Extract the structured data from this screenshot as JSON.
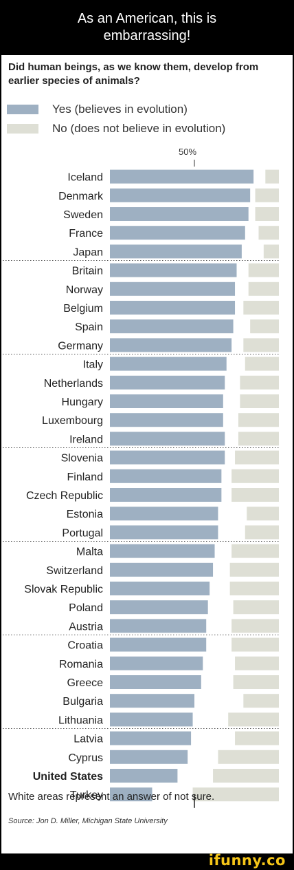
{
  "caption": "As an American, this is embarrassing!",
  "question": "Did human beings, as we know them, develop from earlier species of animals?",
  "legend": [
    {
      "label": "Yes (believes in evolution)",
      "color": "#9eb0c2"
    },
    {
      "label": "No (does not believe in evolution)",
      "color": "#dedfd5"
    }
  ],
  "chart_data": {
    "type": "bar",
    "orientation": "horizontal",
    "stacked": true,
    "reference_line_label": "50%",
    "reference_value": 50,
    "xlim": [
      0,
      100
    ],
    "categories": [
      "Iceland",
      "Denmark",
      "Sweden",
      "France",
      "Japan",
      "Britain",
      "Norway",
      "Belgium",
      "Spain",
      "Germany",
      "Italy",
      "Netherlands",
      "Hungary",
      "Luxembourg",
      "Ireland",
      "Slovenia",
      "Finland",
      "Czech Republic",
      "Estonia",
      "Portugal",
      "Malta",
      "Switzerland",
      "Slovak Republic",
      "Poland",
      "Austria",
      "Croatia",
      "Romania",
      "Greece",
      "Bulgaria",
      "Lithuania",
      "Latvia",
      "Cyprus",
      "United States",
      "Turkey"
    ],
    "highlight": "United States",
    "group_sizes": [
      5,
      5,
      5,
      5,
      5,
      5,
      4
    ],
    "series": [
      {
        "name": "Yes (believes in evolution)",
        "color": "#9eb0c2",
        "values": [
          85,
          83,
          82,
          80,
          78,
          75,
          74,
          74,
          73,
          72,
          69,
          68,
          67,
          67,
          68,
          68,
          66,
          66,
          64,
          64,
          62,
          61,
          59,
          58,
          57,
          57,
          55,
          54,
          50,
          49,
          48,
          46,
          40,
          25
        ]
      },
      {
        "name": "No (does not believe in evolution)",
        "color": "#dedfd5",
        "values": [
          8,
          14,
          14,
          12,
          9,
          18,
          18,
          21,
          17,
          21,
          20,
          23,
          23,
          24,
          24,
          26,
          28,
          28,
          19,
          20,
          28,
          29,
          29,
          27,
          28,
          28,
          26,
          27,
          21,
          30,
          26,
          36,
          39,
          51
        ]
      }
    ]
  },
  "note": "White areas represent an answer of not sure.",
  "source": "Source: Jon D. Miller, Michigan State University",
  "brand": "ifunny.co"
}
